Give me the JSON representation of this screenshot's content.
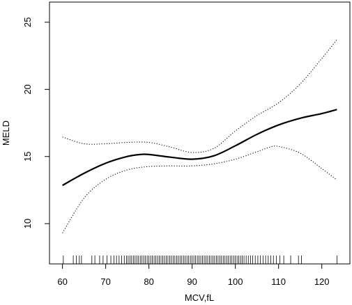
{
  "chart_data": {
    "type": "line",
    "title": "",
    "xlabel": "MCV,fL",
    "ylabel": "MELD",
    "xlim": [
      57,
      126.5
    ],
    "ylim": [
      7,
      26.5
    ],
    "x_ticks": [
      60,
      70,
      80,
      90,
      100,
      110,
      120
    ],
    "y_ticks": [
      10,
      15,
      20,
      25
    ],
    "grid": false,
    "legend": "none",
    "colors": {
      "fit": "#000000",
      "ci": "#000000",
      "rug": "#000000",
      "frame": "#000000"
    },
    "series": [
      {
        "style": "solid",
        "x": [
          60,
          65,
          70,
          75,
          78,
          80,
          85,
          90,
          95,
          100,
          105,
          110,
          115,
          120,
          123.5
        ],
        "y": [
          12.85,
          13.75,
          14.5,
          15.0,
          15.15,
          15.15,
          14.95,
          14.8,
          15.05,
          15.8,
          16.65,
          17.35,
          17.85,
          18.2,
          18.5
        ]
      },
      {
        "style": "dotted",
        "x": [
          60,
          65,
          70,
          75,
          80,
          85,
          90,
          95,
          100,
          105,
          110,
          115,
          120,
          123.5
        ],
        "y": [
          16.45,
          15.95,
          15.95,
          16.05,
          16.05,
          15.7,
          15.3,
          15.6,
          16.9,
          18.05,
          19.0,
          20.4,
          22.3,
          23.7
        ]
      },
      {
        "style": "dotted",
        "x": [
          60,
          65,
          70,
          75,
          80,
          85,
          90,
          95,
          100,
          105,
          108,
          110,
          115,
          120,
          123.5
        ],
        "y": [
          9.3,
          11.9,
          13.3,
          14.0,
          14.25,
          14.3,
          14.3,
          14.45,
          14.8,
          15.35,
          15.7,
          15.75,
          15.25,
          14.1,
          13.25
        ]
      }
    ],
    "rug": [
      60.2,
      62.5,
      63.2,
      63.9,
      64.4,
      66.8,
      67.5,
      68.6,
      69.4,
      70.3,
      71.2,
      71.9,
      72.5,
      73.1,
      73.7,
      74.3,
      74.8,
      75.2,
      75.6,
      76.0,
      76.4,
      76.8,
      77.2,
      77.6,
      78.0,
      78.4,
      78.8,
      79.2,
      79.6,
      80.0,
      80.4,
      80.8,
      81.2,
      81.6,
      82.0,
      82.4,
      82.8,
      83.2,
      83.6,
      84.0,
      84.4,
      84.8,
      85.2,
      85.6,
      86.0,
      86.4,
      86.8,
      87.2,
      87.6,
      88.0,
      88.4,
      88.8,
      89.2,
      89.6,
      90.0,
      90.4,
      90.8,
      91.2,
      91.6,
      92.0,
      92.4,
      92.8,
      93.2,
      93.6,
      94.0,
      94.4,
      94.8,
      95.2,
      95.6,
      96.0,
      96.4,
      96.8,
      97.2,
      97.6,
      98.0,
      98.4,
      98.8,
      99.2,
      99.6,
      100.0,
      100.4,
      100.8,
      101.2,
      101.6,
      102.0,
      102.5,
      103.0,
      103.5,
      104.0,
      104.6,
      105.2,
      105.8,
      106.4,
      107.0,
      107.6,
      108.2,
      108.8,
      109.5,
      110.3,
      111.2,
      112.8,
      114.6,
      115.3,
      123.5
    ]
  }
}
